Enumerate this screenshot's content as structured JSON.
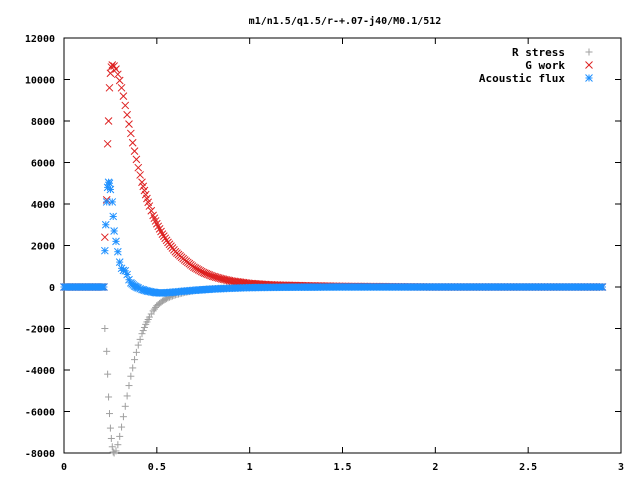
{
  "chart_data": {
    "type": "scatter",
    "title": "m1/n1.5/q1.5/r-+.07-j40/M0.1/512",
    "xlabel": "",
    "ylabel": "",
    "xlim": [
      0,
      3
    ],
    "ylim": [
      -8000,
      12000
    ],
    "x_ticks": [
      "0",
      "0.5",
      "1",
      "1.5",
      "2",
      "2.5",
      "3"
    ],
    "y_ticks": [
      "12000",
      "10000",
      "8000",
      "6000",
      "4000",
      "2000",
      "0",
      "-2000",
      "-4000",
      "-6000",
      "-8000"
    ],
    "grid": false,
    "legend_position": "top-right",
    "series": [
      {
        "name": "R stress",
        "marker": "plus",
        "color": "#a0a0a0",
        "points": [
          [
            0.0,
            0
          ],
          [
            0.05,
            0
          ],
          [
            0.1,
            0
          ],
          [
            0.15,
            0
          ],
          [
            0.2,
            0
          ],
          [
            0.21,
            0
          ],
          [
            0.22,
            -2000
          ],
          [
            0.23,
            -3100
          ],
          [
            0.235,
            -4200
          ],
          [
            0.24,
            -5300
          ],
          [
            0.245,
            -6100
          ],
          [
            0.25,
            -6800
          ],
          [
            0.255,
            -7300
          ],
          [
            0.26,
            -7700
          ],
          [
            0.265,
            -7950
          ],
          [
            0.27,
            -8000
          ],
          [
            0.28,
            -7900
          ],
          [
            0.29,
            -7600
          ],
          [
            0.3,
            -7200
          ],
          [
            0.31,
            -6750
          ],
          [
            0.32,
            -6250
          ],
          [
            0.33,
            -5750
          ],
          [
            0.34,
            -5250
          ],
          [
            0.35,
            -4750
          ],
          [
            0.36,
            -4300
          ],
          [
            0.37,
            -3900
          ],
          [
            0.38,
            -3500
          ],
          [
            0.39,
            -3150
          ],
          [
            0.4,
            -2800
          ],
          [
            0.42,
            -2250
          ],
          [
            0.44,
            -1800
          ],
          [
            0.46,
            -1450
          ],
          [
            0.48,
            -1150
          ],
          [
            0.5,
            -900
          ],
          [
            0.53,
            -680
          ],
          [
            0.56,
            -520
          ],
          [
            0.6,
            -380
          ],
          [
            0.65,
            -260
          ],
          [
            0.7,
            -180
          ],
          [
            0.75,
            -120
          ],
          [
            0.8,
            -80
          ],
          [
            0.9,
            -35
          ],
          [
            1.0,
            -15
          ],
          [
            1.2,
            -5
          ],
          [
            1.5,
            0
          ],
          [
            2.0,
            0
          ],
          [
            2.5,
            0
          ],
          [
            2.9,
            0
          ]
        ]
      },
      {
        "name": "G work",
        "marker": "cross",
        "color": "#dd2020",
        "points": [
          [
            0.0,
            0
          ],
          [
            0.1,
            0
          ],
          [
            0.2,
            0
          ],
          [
            0.215,
            0
          ],
          [
            0.22,
            2400
          ],
          [
            0.23,
            4200
          ],
          [
            0.235,
            6900
          ],
          [
            0.24,
            8000
          ],
          [
            0.245,
            9600
          ],
          [
            0.25,
            10300
          ],
          [
            0.255,
            10600
          ],
          [
            0.26,
            10700
          ],
          [
            0.27,
            10650
          ],
          [
            0.28,
            10500
          ],
          [
            0.29,
            10250
          ],
          [
            0.3,
            9950
          ],
          [
            0.31,
            9600
          ],
          [
            0.32,
            9200
          ],
          [
            0.33,
            8750
          ],
          [
            0.34,
            8300
          ],
          [
            0.35,
            7850
          ],
          [
            0.36,
            7400
          ],
          [
            0.37,
            6950
          ],
          [
            0.38,
            6550
          ],
          [
            0.39,
            6150
          ],
          [
            0.4,
            5750
          ],
          [
            0.42,
            5050
          ],
          [
            0.44,
            4450
          ],
          [
            0.46,
            3900
          ],
          [
            0.48,
            3450
          ],
          [
            0.5,
            3050
          ],
          [
            0.53,
            2550
          ],
          [
            0.56,
            2150
          ],
          [
            0.6,
            1700
          ],
          [
            0.65,
            1300
          ],
          [
            0.7,
            950
          ],
          [
            0.75,
            700
          ],
          [
            0.8,
            520
          ],
          [
            0.85,
            390
          ],
          [
            0.9,
            290
          ],
          [
            1.0,
            170
          ],
          [
            1.1,
            110
          ],
          [
            1.2,
            80
          ],
          [
            1.3,
            60
          ],
          [
            1.5,
            30
          ],
          [
            2.0,
            0
          ],
          [
            2.5,
            0
          ],
          [
            2.9,
            0
          ]
        ]
      },
      {
        "name": "Acoustic flux",
        "marker": "star",
        "color": "#1e90ff",
        "points": [
          [
            0.0,
            0
          ],
          [
            0.1,
            0
          ],
          [
            0.2,
            0
          ],
          [
            0.215,
            0
          ],
          [
            0.22,
            1750
          ],
          [
            0.225,
            3000
          ],
          [
            0.23,
            4100
          ],
          [
            0.235,
            4800
          ],
          [
            0.24,
            5050
          ],
          [
            0.245,
            5000
          ],
          [
            0.25,
            4700
          ],
          [
            0.26,
            4100
          ],
          [
            0.265,
            3400
          ],
          [
            0.27,
            2700
          ],
          [
            0.28,
            2200
          ],
          [
            0.29,
            1700
          ],
          [
            0.3,
            1200
          ],
          [
            0.31,
            900
          ],
          [
            0.32,
            800
          ],
          [
            0.33,
            780
          ],
          [
            0.34,
            600
          ],
          [
            0.35,
            350
          ],
          [
            0.36,
            200
          ],
          [
            0.38,
            50
          ],
          [
            0.4,
            -50
          ],
          [
            0.42,
            -120
          ],
          [
            0.45,
            -200
          ],
          [
            0.48,
            -250
          ],
          [
            0.5,
            -280
          ],
          [
            0.53,
            -290
          ],
          [
            0.56,
            -270
          ],
          [
            0.6,
            -240
          ],
          [
            0.65,
            -200
          ],
          [
            0.7,
            -160
          ],
          [
            0.8,
            -100
          ],
          [
            0.9,
            -60
          ],
          [
            1.0,
            -30
          ],
          [
            1.2,
            -10
          ],
          [
            1.5,
            0
          ],
          [
            2.0,
            0
          ],
          [
            2.5,
            0
          ],
          [
            2.9,
            0
          ]
        ]
      }
    ]
  }
}
